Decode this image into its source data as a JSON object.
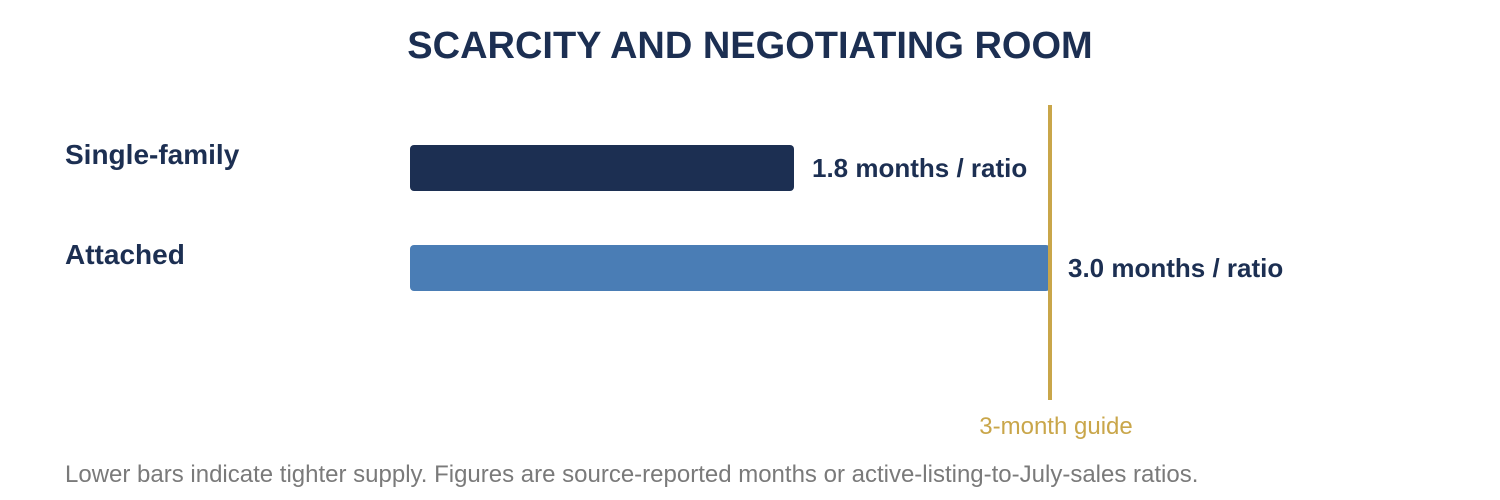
{
  "chart_data": {
    "type": "bar",
    "orientation": "horizontal",
    "title": "SCARCITY AND NEGOTIATING ROOM",
    "categories": [
      "Single-family",
      "Attached"
    ],
    "values": [
      1.8,
      3.0
    ],
    "value_labels": [
      "1.8 months / ratio",
      "3.0 months / ratio"
    ],
    "bar_colors": [
      "#1c2f52",
      "#4a7db5"
    ],
    "xlim": [
      0,
      3.0
    ],
    "reference_line": {
      "value": 3.0,
      "label": "3-month guide",
      "color": "#c9a64a"
    },
    "footnote": "Lower bars indicate tighter supply. Figures are source-reported months or active-listing-to-July-sales ratios.",
    "grid": false,
    "legend": "none"
  },
  "colors": {
    "title": "#1c2f52",
    "label": "#1c2f52",
    "footnote": "#7a7a7a",
    "background": "#ffffff"
  }
}
